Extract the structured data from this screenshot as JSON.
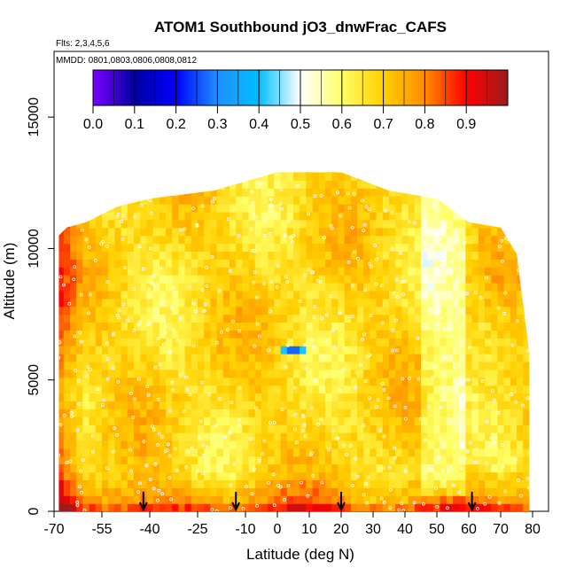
{
  "chart_data": {
    "type": "heatmap",
    "title": "ATOM1 Southbound jO3_dnwFrac_CAFS",
    "flights_label": "Flts: 2,3,4,5,6",
    "dates_label": "MMDD: 0801,0803,0806,0808,0812",
    "xlabel": "Latitude (deg N)",
    "ylabel": "Altitude (m)",
    "xlim": [
      -70,
      85
    ],
    "ylim": [
      0,
      17500
    ],
    "x_ticks": [
      "-70",
      "-55",
      "-40",
      "-25",
      "-10",
      "0",
      "10",
      "20",
      "30",
      "40",
      "50",
      "60",
      "70",
      "80"
    ],
    "x_tick_values": [
      -70,
      -55,
      -40,
      -25,
      -10,
      0,
      10,
      20,
      30,
      40,
      50,
      60,
      70,
      80
    ],
    "y_ticks": [
      "0",
      "5000",
      "10000",
      "15000"
    ],
    "y_tick_values": [
      0,
      5000,
      10000,
      15000
    ],
    "colorbar": {
      "ticks": [
        "0.0",
        "0.1",
        "0.2",
        "0.3",
        "0.4",
        "0.5",
        "0.6",
        "0.7",
        "0.8",
        "0.9"
      ],
      "tick_values": [
        0,
        0.1,
        0.2,
        0.3,
        0.4,
        0.5,
        0.6,
        0.7,
        0.8,
        0.9
      ],
      "range": [
        0,
        1
      ],
      "colors": [
        "#7a00ff",
        "#0000a0",
        "#0000ff",
        "#1e90ff",
        "#00bfff",
        "#ffffff",
        "#ffff66",
        "#ffd000",
        "#ff8c00",
        "#ff0000",
        "#9b1c1c"
      ]
    },
    "envelope": [
      {
        "lat": -68.5,
        "top": 10500
      },
      {
        "lat": -66,
        "top": 10800
      },
      {
        "lat": -60,
        "top": 11000
      },
      {
        "lat": -50,
        "top": 11600
      },
      {
        "lat": -40,
        "top": 11900
      },
      {
        "lat": -20,
        "top": 12200
      },
      {
        "lat": 0,
        "top": 12900
      },
      {
        "lat": 20,
        "top": 12900
      },
      {
        "lat": 35,
        "top": 12200
      },
      {
        "lat": 50,
        "top": 11900
      },
      {
        "lat": 60,
        "top": 11000
      },
      {
        "lat": 70,
        "top": 10800
      },
      {
        "lat": 75,
        "top": 9800
      },
      {
        "lat": 79,
        "top": 6000
      },
      {
        "lat": 79,
        "top": 0
      }
    ],
    "surface_markers_lat": [
      -42,
      -13,
      20,
      61
    ],
    "feature_low_value": {
      "lat": 5,
      "alt": 6200,
      "value": 0.2
    }
  }
}
